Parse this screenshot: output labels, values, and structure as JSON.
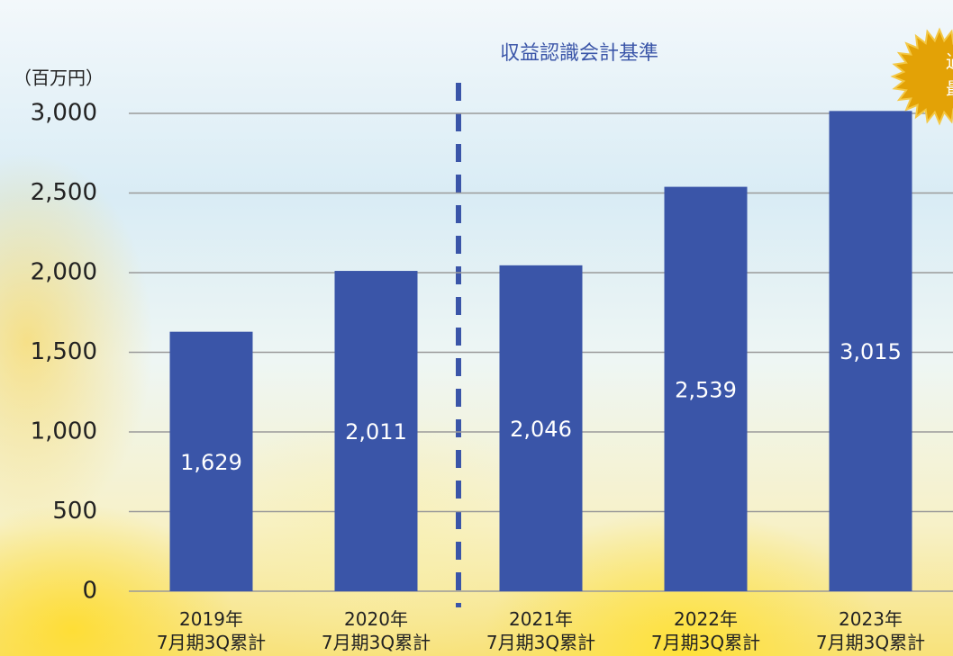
{
  "chart_data": {
    "type": "bar",
    "unit_label": "（百万円）",
    "divider_label": "収益認識会計基準",
    "badge_lines": [
      "過",
      "最"
    ],
    "categories": [
      "2019年\n7月期3Q累計",
      "2020年\n7月期3Q累計",
      "2021年\n7月期3Q累計",
      "2022年\n7月期3Q累計",
      "2023年\n7月期3Q累計"
    ],
    "values": [
      1629,
      2011,
      2046,
      2539,
      3015
    ],
    "value_labels": [
      "1,629",
      "2,011",
      "2,046",
      "2,539",
      "3,015"
    ],
    "color": "#3a55a8",
    "ylim": [
      0,
      3000
    ],
    "yticks": [
      0,
      500,
      {
        "value": 1000,
        "label": "1,000"
      },
      {
        "value": 1500,
        "label": "1,500"
      },
      {
        "value": 2000,
        "label": "2,000"
      },
      {
        "value": 2500,
        "label": "2,500"
      },
      {
        "value": 3000,
        "label": "3,000"
      }
    ],
    "grid": true
  }
}
